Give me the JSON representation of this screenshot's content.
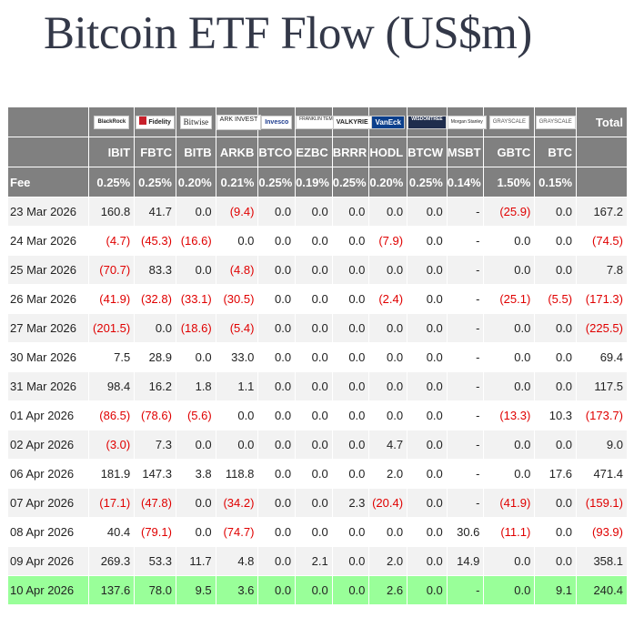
{
  "title": "Bitcoin ETF Flow (US$m)",
  "colors": {
    "header_bg": "#808080",
    "negative": "#e00000",
    "highlight": "#99ff99",
    "stripe": "#f2f2f2"
  },
  "issuers": [
    "BlackRock",
    "Fidelity",
    "Bitwise",
    "ARK INVEST",
    "Invesco",
    "FRANKLIN TEMPLETON",
    "VALKYRIE",
    "VanEck",
    "WISDOMTREE",
    "Morgan Stanley",
    "GRAYSCALE",
    "GRAYSCALE"
  ],
  "total_label": "Total",
  "fee_label": "Fee",
  "tickers": [
    "IBIT",
    "FBTC",
    "BITB",
    "ARKB",
    "BTCO",
    "EZBC",
    "BRRR",
    "HODL",
    "BTCW",
    "MSBT",
    "GBTC",
    "BTC"
  ],
  "fees": [
    "0.25%",
    "0.25%",
    "0.20%",
    "0.21%",
    "0.25%",
    "0.19%",
    "0.25%",
    "0.20%",
    "0.25%",
    "0.14%",
    "1.50%",
    "0.15%"
  ],
  "chart_data": {
    "type": "table",
    "title": "Bitcoin ETF Flow (US$m)",
    "columns": [
      "IBIT",
      "FBTC",
      "BITB",
      "ARKB",
      "BTCO",
      "EZBC",
      "BRRR",
      "HODL",
      "BTCW",
      "MSBT",
      "GBTC",
      "BTC",
      "Total"
    ],
    "rows": [
      {
        "date": "23 Mar 2026",
        "cells": [
          "160.8",
          "41.7",
          "0.0",
          "(9.4)",
          "0.0",
          "0.0",
          "0.0",
          "0.0",
          "0.0",
          "-",
          "(25.9)",
          "0.0",
          "167.2"
        ]
      },
      {
        "date": "24 Mar 2026",
        "cells": [
          "(4.7)",
          "(45.3)",
          "(16.6)",
          "0.0",
          "0.0",
          "0.0",
          "0.0",
          "(7.9)",
          "0.0",
          "-",
          "0.0",
          "0.0",
          "(74.5)"
        ]
      },
      {
        "date": "25 Mar 2026",
        "cells": [
          "(70.7)",
          "83.3",
          "0.0",
          "(4.8)",
          "0.0",
          "0.0",
          "0.0",
          "0.0",
          "0.0",
          "-",
          "0.0",
          "0.0",
          "7.8"
        ]
      },
      {
        "date": "26 Mar 2026",
        "cells": [
          "(41.9)",
          "(32.8)",
          "(33.1)",
          "(30.5)",
          "0.0",
          "0.0",
          "0.0",
          "(2.4)",
          "0.0",
          "-",
          "(25.1)",
          "(5.5)",
          "(171.3)"
        ]
      },
      {
        "date": "27 Mar 2026",
        "cells": [
          "(201.5)",
          "0.0",
          "(18.6)",
          "(5.4)",
          "0.0",
          "0.0",
          "0.0",
          "0.0",
          "0.0",
          "-",
          "0.0",
          "0.0",
          "(225.5)"
        ]
      },
      {
        "date": "30 Mar 2026",
        "cells": [
          "7.5",
          "28.9",
          "0.0",
          "33.0",
          "0.0",
          "0.0",
          "0.0",
          "0.0",
          "0.0",
          "-",
          "0.0",
          "0.0",
          "69.4"
        ]
      },
      {
        "date": "31 Mar 2026",
        "cells": [
          "98.4",
          "16.2",
          "1.8",
          "1.1",
          "0.0",
          "0.0",
          "0.0",
          "0.0",
          "0.0",
          "-",
          "0.0",
          "0.0",
          "117.5"
        ]
      },
      {
        "date": "01 Apr 2026",
        "cells": [
          "(86.5)",
          "(78.6)",
          "(5.6)",
          "0.0",
          "0.0",
          "0.0",
          "0.0",
          "0.0",
          "0.0",
          "-",
          "(13.3)",
          "10.3",
          "(173.7)"
        ]
      },
      {
        "date": "02 Apr 2026",
        "cells": [
          "(3.0)",
          "7.3",
          "0.0",
          "0.0",
          "0.0",
          "0.0",
          "0.0",
          "4.7",
          "0.0",
          "-",
          "0.0",
          "0.0",
          "9.0"
        ]
      },
      {
        "date": "06 Apr 2026",
        "cells": [
          "181.9",
          "147.3",
          "3.8",
          "118.8",
          "0.0",
          "0.0",
          "0.0",
          "2.0",
          "0.0",
          "-",
          "0.0",
          "17.6",
          "471.4"
        ]
      },
      {
        "date": "07 Apr 2026",
        "cells": [
          "(17.1)",
          "(47.8)",
          "0.0",
          "(34.2)",
          "0.0",
          "0.0",
          "2.3",
          "(20.4)",
          "0.0",
          "-",
          "(41.9)",
          "0.0",
          "(159.1)"
        ]
      },
      {
        "date": "08 Apr 2026",
        "cells": [
          "40.4",
          "(79.1)",
          "0.0",
          "(74.7)",
          "0.0",
          "0.0",
          "0.0",
          "0.0",
          "0.0",
          "30.6",
          "(11.1)",
          "0.0",
          "(93.9)"
        ]
      },
      {
        "date": "09 Apr 2026",
        "cells": [
          "269.3",
          "53.3",
          "11.7",
          "4.8",
          "0.0",
          "2.1",
          "0.0",
          "2.0",
          "0.0",
          "14.9",
          "0.0",
          "0.0",
          "358.1"
        ]
      },
      {
        "date": "10 Apr 2026",
        "cells": [
          "137.6",
          "78.0",
          "9.5",
          "3.6",
          "0.0",
          "0.0",
          "0.0",
          "2.6",
          "0.0",
          "-",
          "0.0",
          "9.1",
          "240.4"
        ],
        "highlighted": true
      }
    ]
  }
}
